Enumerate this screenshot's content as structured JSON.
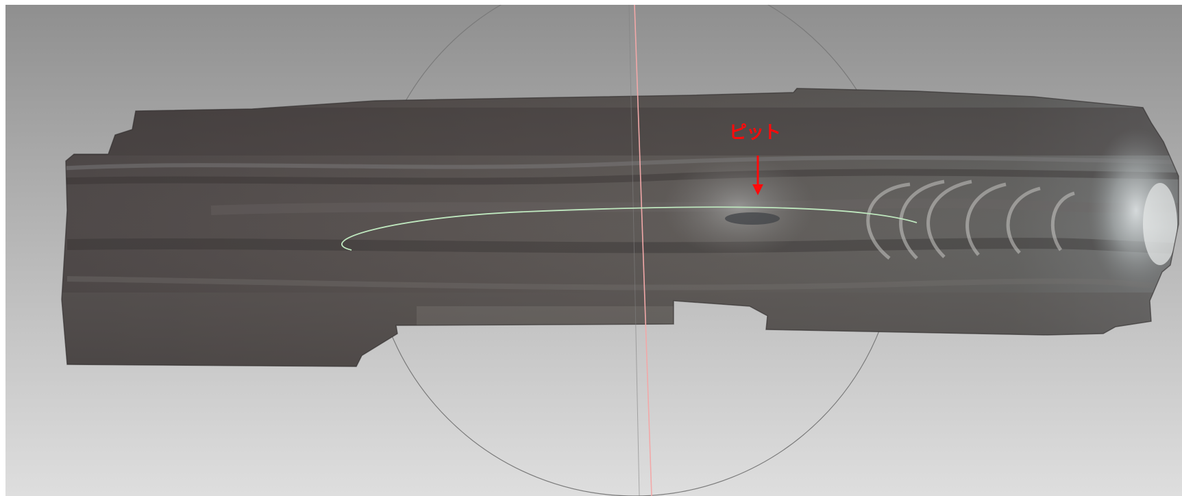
{
  "viewer": {
    "annotations": [
      {
        "label": "ピット",
        "color": "#ff0000"
      }
    ],
    "gizmo": {
      "trackball_ring_color": "#7a7a7a",
      "vertical_axis_color": "#f2a8a8",
      "horizontal_orbit_color": "#bfe8bf"
    },
    "background": {
      "top": "#8f8f8f",
      "bottom": "#dedede"
    }
  }
}
